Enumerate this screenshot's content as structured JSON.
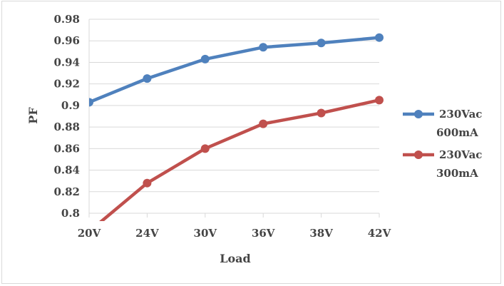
{
  "chart_data": {
    "type": "line",
    "categories": [
      "20V",
      "24V",
      "30V",
      "36V",
      "38V",
      "42V"
    ],
    "xlabel": "Load",
    "ylabel": "PF",
    "ylim": [
      0.8,
      0.98
    ],
    "yticks": [
      "0.8",
      "0.82",
      "0.84",
      "0.86",
      "0.88",
      "0.9",
      "0.92",
      "0.94",
      "0.96",
      "0.98"
    ],
    "grid": true,
    "legend_position": "right",
    "series": [
      {
        "name_lines": [
          "230Vac",
          "600mA"
        ],
        "color": "#4f81bd",
        "values": [
          0.903,
          0.925,
          0.943,
          0.954,
          0.958,
          0.963
        ]
      },
      {
        "name_lines": [
          "230Vac",
          "300mA"
        ],
        "color": "#c0504d",
        "values": [
          0.783,
          0.828,
          0.86,
          0.883,
          0.893,
          0.905
        ]
      }
    ]
  }
}
